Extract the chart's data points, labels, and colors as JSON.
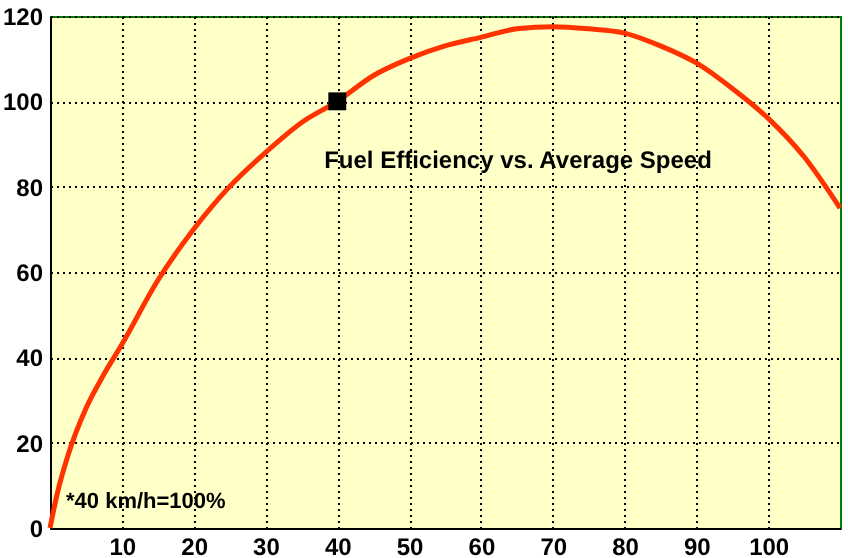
{
  "chart_data": {
    "type": "line",
    "x": [
      0,
      1,
      2.5,
      5,
      7.5,
      10,
      15,
      20,
      25,
      30,
      35,
      40,
      45,
      50,
      55,
      60,
      65,
      70,
      75,
      80,
      85,
      90,
      95,
      100,
      105,
      110
    ],
    "series": [
      {
        "color": "#ff3300",
        "values": [
          0,
          8,
          17,
          28,
          36,
          43,
          58,
          70,
          80,
          88,
          95,
          100,
          106,
          110,
          113,
          115,
          117,
          117.5,
          117,
          116,
          113,
          109,
          103,
          96,
          87,
          75
        ]
      },
      {
        "type": "scatter",
        "color": "#000000",
        "marker": "square",
        "x": [
          40
        ],
        "values": [
          100
        ]
      }
    ],
    "xlim": [
      0,
      110
    ],
    "ylim": [
      0,
      120
    ],
    "xticks": [
      10,
      20,
      30,
      40,
      50,
      60,
      70,
      80,
      90,
      100
    ],
    "yticks": [
      0,
      20,
      40,
      60,
      80,
      100,
      120
    ],
    "grid": true,
    "line_style": "solid",
    "annotations": [
      "Fuel Efficiency vs. Average Speed",
      "*40 km/h=100%"
    ]
  }
}
